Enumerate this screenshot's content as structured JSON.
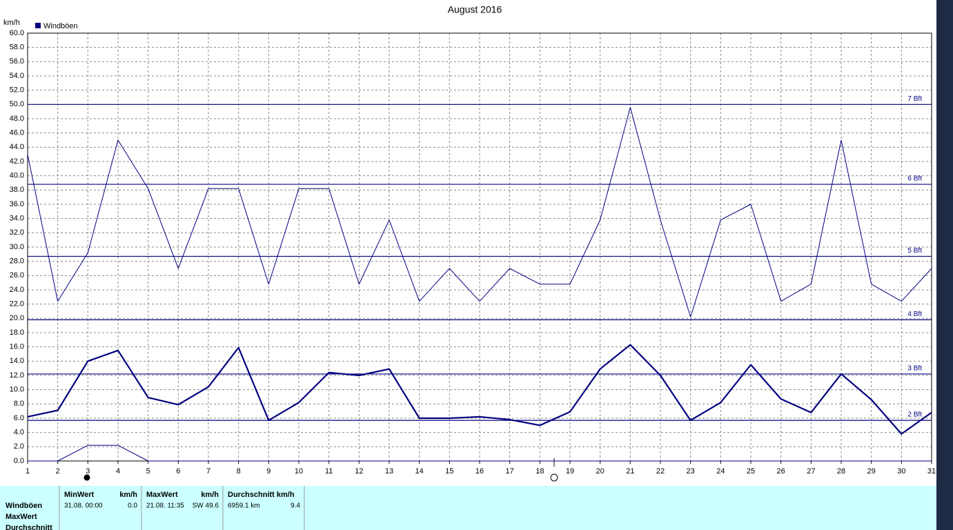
{
  "chart_data": {
    "type": "line",
    "title": "August 2016",
    "y_label": "km/h",
    "legend": "Windböen",
    "x": [
      1,
      2,
      3,
      4,
      5,
      6,
      7,
      8,
      9,
      10,
      11,
      12,
      13,
      14,
      15,
      16,
      17,
      18,
      19,
      20,
      21,
      22,
      23,
      24,
      25,
      26,
      27,
      28,
      29,
      30,
      31
    ],
    "xlim": [
      1,
      31
    ],
    "xticks": [
      1,
      2,
      3,
      4,
      5,
      6,
      7,
      8,
      9,
      10,
      11,
      12,
      13,
      14,
      15,
      16,
      17,
      18,
      19,
      20,
      21,
      22,
      23,
      24,
      25,
      26,
      27,
      28,
      29,
      30,
      31
    ],
    "ylim": [
      0,
      60
    ],
    "yticks": [
      {
        "value": 0,
        "label": "0.0"
      },
      {
        "value": 2,
        "label": "2.0"
      },
      {
        "value": 4,
        "label": "4.0"
      },
      {
        "value": 6,
        "label": "6.0"
      },
      {
        "value": 8,
        "label": "8.0"
      },
      {
        "value": 10,
        "label": "10.0"
      },
      {
        "value": 12,
        "label": "12.0"
      },
      {
        "value": 14,
        "label": "14.0"
      },
      {
        "value": 16,
        "label": "16.0"
      },
      {
        "value": 18,
        "label": "18.0"
      },
      {
        "value": 20,
        "label": "20.0"
      },
      {
        "value": 22,
        "label": "22.0"
      },
      {
        "value": 24,
        "label": "24.0"
      },
      {
        "value": 26,
        "label": "26.0"
      },
      {
        "value": 28,
        "label": "28.0"
      },
      {
        "value": 30,
        "label": "30.0"
      },
      {
        "value": 32,
        "label": "32.0"
      },
      {
        "value": 34,
        "label": "34.0"
      },
      {
        "value": 36,
        "label": "36.0"
      },
      {
        "value": 38,
        "label": "38.0"
      },
      {
        "value": 40,
        "label": "40.0"
      },
      {
        "value": 42,
        "label": "42.0"
      },
      {
        "value": 44,
        "label": "44.0"
      },
      {
        "value": 46,
        "label": "46.0"
      },
      {
        "value": 48,
        "label": "48.0"
      },
      {
        "value": 50,
        "label": "50.0"
      },
      {
        "value": 52,
        "label": "52.0"
      },
      {
        "value": 54,
        "label": "54.0"
      },
      {
        "value": 56,
        "label": "56.0"
      },
      {
        "value": 58,
        "label": "58.0"
      },
      {
        "value": 60,
        "label": "60.0"
      }
    ],
    "grid": true,
    "color": "#000080",
    "series": [
      {
        "color": "#000080",
        "width": 1,
        "values": [
          43.0,
          22.4,
          29.2,
          45.0,
          38.2,
          27.0,
          38.2,
          38.2,
          24.8,
          38.2,
          38.2,
          24.8,
          33.8,
          22.4,
          27.0,
          22.4,
          27.0,
          24.8,
          24.8,
          33.8,
          49.6,
          33.8,
          20.2,
          33.8,
          36.0,
          22.4,
          24.8,
          45.0,
          24.8,
          22.4,
          27.0
        ]
      },
      {
        "color": "#000080",
        "width": 2.2,
        "values": [
          6.2,
          7.1,
          14.0,
          15.5,
          8.9,
          7.9,
          10.4,
          15.9,
          5.7,
          8.2,
          12.4,
          12.0,
          12.9,
          6.0,
          6.0,
          6.2,
          5.8,
          5.0,
          6.9,
          12.9,
          16.3,
          12.0,
          5.7,
          8.2,
          13.5,
          8.7,
          6.8,
          12.2,
          8.6,
          3.8,
          6.8
        ]
      },
      {
        "color": "#000080",
        "width": 1,
        "values": [
          0,
          0,
          2.2,
          2.2,
          0,
          0,
          0,
          0,
          0,
          0,
          0,
          0,
          0,
          0,
          0,
          0,
          0,
          0,
          0,
          0,
          0,
          0,
          0,
          0,
          0,
          0,
          0,
          0,
          0,
          0,
          0
        ]
      }
    ],
    "reference_lines": [
      {
        "value": 50,
        "label": "7 Bft"
      },
      {
        "value": 38.8,
        "label": "6 Bft"
      },
      {
        "value": 28.7,
        "label": "5 Bft"
      },
      {
        "value": 19.8,
        "label": "4 Bft"
      },
      {
        "value": 12.2,
        "label": "3 Bft"
      },
      {
        "value": 5.7,
        "label": "2 Bft"
      }
    ]
  },
  "stats_table": {
    "row_labels": [
      "Windböen",
      "MaxWert",
      "Durchschnitt"
    ],
    "columns": [
      {
        "header": "MinWert",
        "unit": "km/h",
        "time": "31.08.  00:00",
        "value": "0.0"
      },
      {
        "header": "MaxWert",
        "unit": "km/h",
        "time": "21.08.  11:35",
        "value": "SW 49.6"
      },
      {
        "header": "Durchschnitt km/h",
        "time": "6959.1 km",
        "value": "9.4"
      }
    ]
  }
}
